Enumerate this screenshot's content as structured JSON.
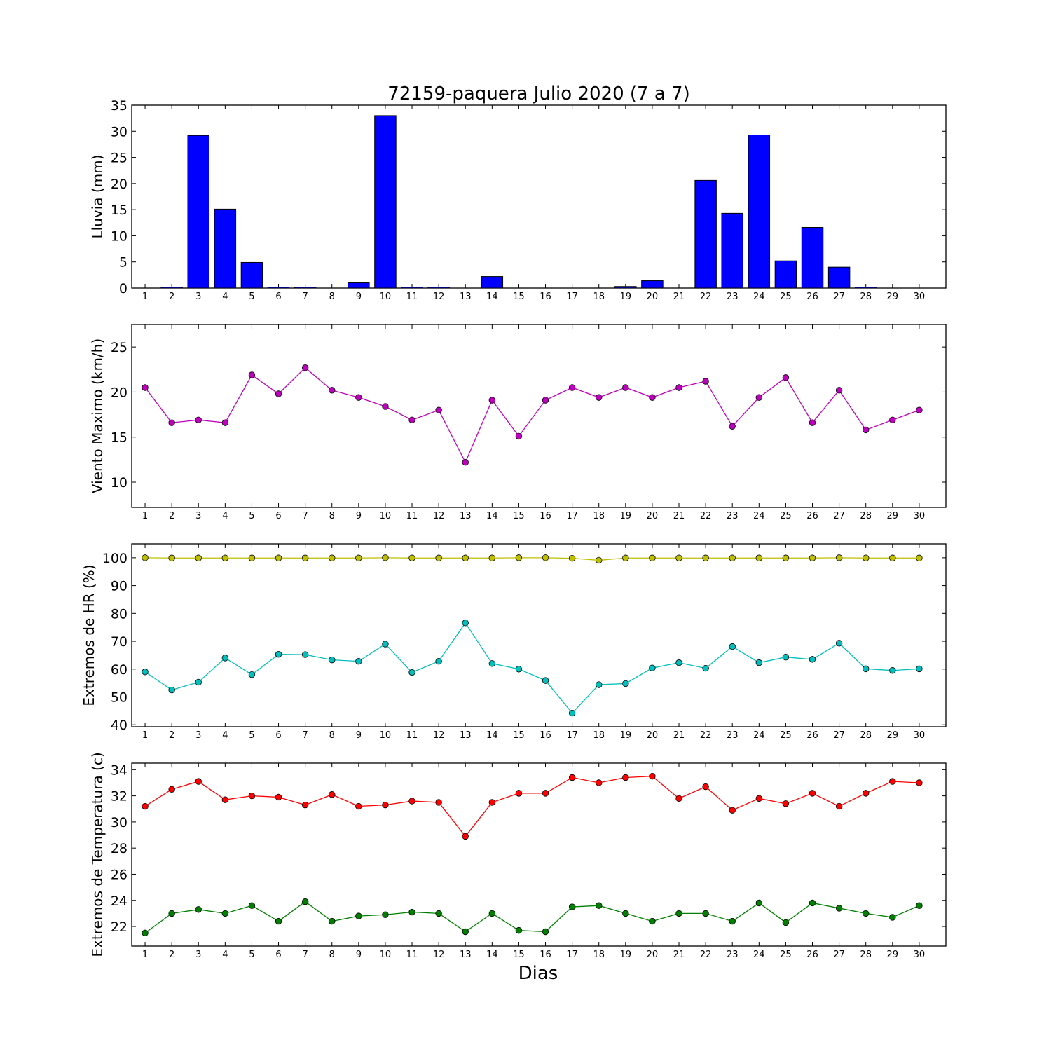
{
  "chart_data": [
    {
      "type": "bar",
      "title": "72159-paquera Julio 2020  (7 a 7)",
      "xlabel": "",
      "ylabel": "Lluvia (mm)",
      "ylim": [
        0,
        35
      ],
      "yticks": [
        0,
        5,
        10,
        15,
        20,
        25,
        30,
        35
      ],
      "categories": [
        "1",
        "2",
        "3",
        "4",
        "5",
        "6",
        "7",
        "8",
        "9",
        "10",
        "11",
        "12",
        "13",
        "14",
        "15",
        "16",
        "17",
        "18",
        "19",
        "20",
        "21",
        "22",
        "23",
        "24",
        "25",
        "26",
        "27",
        "28",
        "29",
        "30"
      ],
      "series": [
        {
          "color": "#0000ff",
          "values": [
            0,
            0.2,
            29.2,
            15.1,
            4.9,
            0.2,
            0.2,
            0,
            1.0,
            33.0,
            0.2,
            0.2,
            0,
            2.2,
            0,
            0,
            0,
            0,
            0.3,
            1.4,
            0,
            20.6,
            14.3,
            29.3,
            5.2,
            11.6,
            4.0,
            0.2,
            0,
            0
          ]
        }
      ]
    },
    {
      "type": "line",
      "title": "",
      "xlabel": "",
      "ylabel": "Viento Maximo (km/h)",
      "ylim": [
        7.2,
        27.5
      ],
      "yticks": [
        10,
        15,
        20,
        25
      ],
      "x": [
        1,
        2,
        3,
        4,
        5,
        6,
        7,
        8,
        9,
        10,
        11,
        12,
        13,
        14,
        15,
        16,
        17,
        18,
        19,
        20,
        21,
        22,
        23,
        24,
        25,
        26,
        27,
        28,
        29,
        30
      ],
      "series": [
        {
          "color": "#bf00bf",
          "values": [
            20.5,
            16.6,
            16.9,
            16.6,
            21.9,
            19.8,
            22.7,
            20.2,
            19.4,
            18.4,
            16.9,
            18.0,
            12.2,
            19.1,
            15.1,
            19.1,
            20.5,
            19.4,
            20.5,
            19.4,
            20.5,
            21.2,
            16.2,
            19.4,
            21.6,
            16.6,
            20.2,
            15.8,
            16.9,
            18.0
          ]
        }
      ]
    },
    {
      "type": "line",
      "title": "",
      "xlabel": "",
      "ylabel": "Extremos de HR (%)",
      "ylim": [
        39.3,
        105
      ],
      "yticks": [
        40,
        50,
        60,
        70,
        80,
        90,
        100
      ],
      "x": [
        1,
        2,
        3,
        4,
        5,
        6,
        7,
        8,
        9,
        10,
        11,
        12,
        13,
        14,
        15,
        16,
        17,
        18,
        19,
        20,
        21,
        22,
        23,
        24,
        25,
        26,
        27,
        28,
        29,
        30
      ],
      "series": [
        {
          "color": "#bfbf00",
          "values": [
            100,
            99.9,
            99.9,
            99.9,
            99.9,
            99.9,
            99.9,
            99.9,
            99.9,
            100,
            99.9,
            99.9,
            99.9,
            99.9,
            100,
            100,
            99.8,
            99.1,
            99.9,
            99.9,
            99.9,
            99.9,
            99.9,
            99.9,
            99.9,
            99.9,
            100,
            99.9,
            99.9,
            99.9
          ]
        },
        {
          "color": "#00bfbf",
          "values": [
            59,
            52.5,
            55.3,
            64,
            58,
            65.3,
            65.2,
            63.3,
            62.8,
            69,
            58.8,
            62.8,
            76.6,
            62,
            60,
            55.9,
            44.2,
            54.4,
            54.8,
            60.4,
            62.3,
            60.3,
            68.1,
            62.3,
            64.3,
            63.5,
            69.3,
            60.1,
            59.5,
            60.1
          ]
        }
      ]
    },
    {
      "type": "line",
      "title": "",
      "xlabel": "Dias",
      "ylabel": "Extremos de Temperatura (c)",
      "ylim": [
        20.5,
        34.5
      ],
      "yticks": [
        22,
        24,
        26,
        28,
        30,
        32,
        34
      ],
      "x": [
        1,
        2,
        3,
        4,
        5,
        6,
        7,
        8,
        9,
        10,
        11,
        12,
        13,
        14,
        15,
        16,
        17,
        18,
        19,
        20,
        21,
        22,
        23,
        24,
        25,
        26,
        27,
        28,
        29,
        30
      ],
      "series": [
        {
          "color": "#ff0000",
          "values": [
            31.2,
            32.5,
            33.1,
            31.7,
            32.0,
            31.9,
            31.3,
            32.1,
            31.2,
            31.3,
            31.6,
            31.5,
            28.9,
            31.5,
            32.2,
            32.2,
            33.4,
            33.0,
            33.4,
            33.5,
            31.8,
            32.7,
            30.9,
            31.8,
            31.4,
            32.2,
            31.2,
            32.2,
            33.1,
            33.0
          ]
        },
        {
          "color": "#008000",
          "values": [
            21.5,
            23.0,
            23.3,
            23.0,
            23.6,
            22.4,
            23.9,
            22.4,
            22.8,
            22.9,
            23.1,
            23.0,
            21.6,
            23.0,
            21.7,
            21.6,
            23.5,
            23.6,
            23.0,
            22.4,
            23.0,
            23.0,
            22.4,
            23.8,
            22.3,
            23.8,
            23.4,
            23.0,
            22.7,
            23.6
          ]
        }
      ]
    }
  ]
}
